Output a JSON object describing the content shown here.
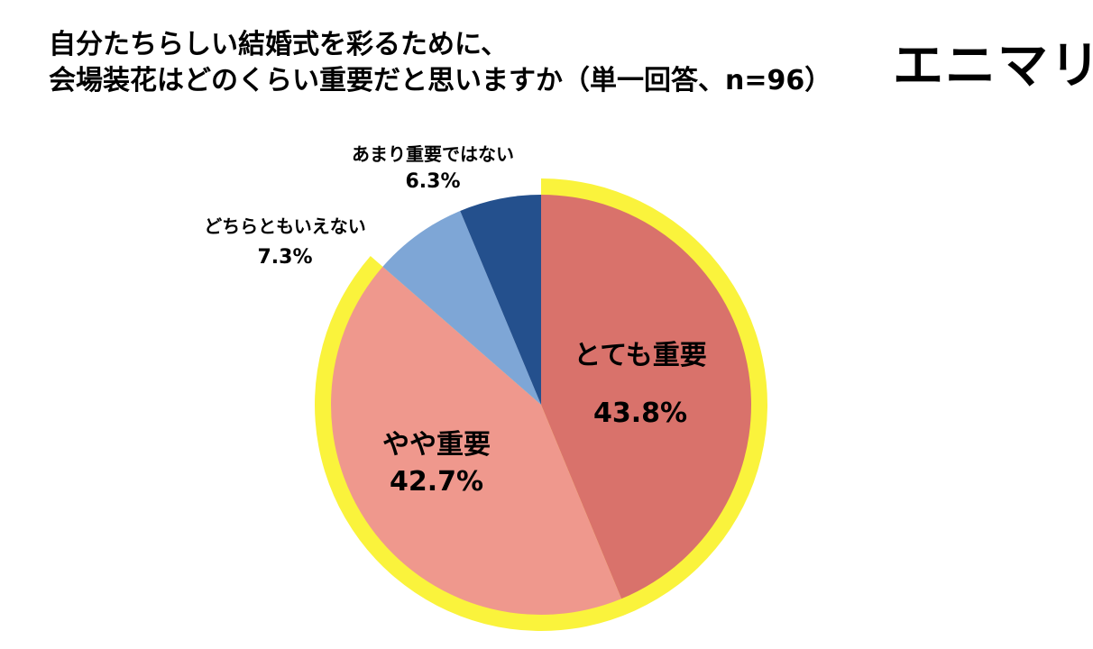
{
  "title": {
    "line1": "自分たちらしい結婚式を彩るために、",
    "line2": "会場装花はどのくらい重要だと思いますか（単一回答、n=96）"
  },
  "logo": {
    "text": "エニマリ"
  },
  "chart_data": {
    "type": "pie",
    "slices": [
      {
        "label": "とても重要",
        "value": 43.8,
        "display": "43.8%",
        "color": "#d9726b",
        "highlighted": true
      },
      {
        "label": "やや重要",
        "value": 42.7,
        "display": "42.7%",
        "color": "#ef988d",
        "highlighted": true
      },
      {
        "label": "どちらともいえない",
        "value": 7.3,
        "display": "7.3%",
        "color": "#7ea6d6",
        "highlighted": false
      },
      {
        "label": "あまり重要ではない",
        "value": 6.3,
        "display": "6.3%",
        "color": "#24508d",
        "highlighted": false
      }
    ],
    "start_angle": "12 o'clock",
    "direction": "clockwise",
    "highlight_ring_color": "#faf33c"
  }
}
